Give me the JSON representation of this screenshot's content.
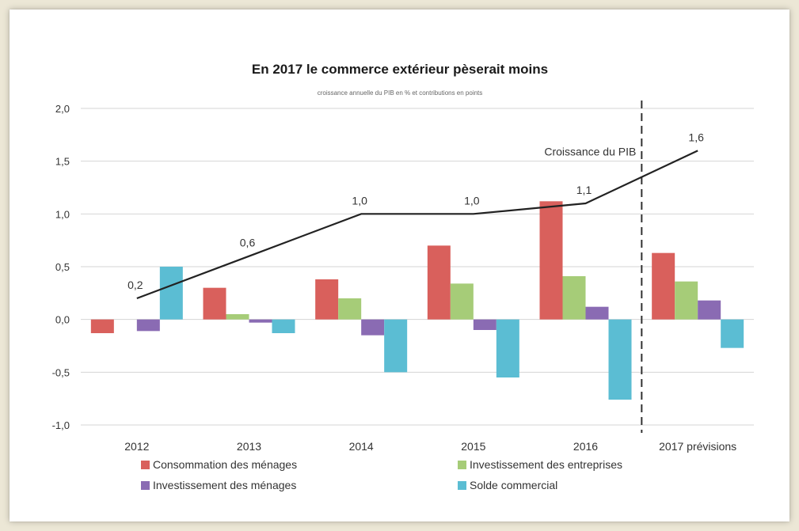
{
  "chart_data": {
    "type": "bar",
    "title": "En 2017 le commerce extérieur pèserait moins",
    "subtitle": "croissance annuelle du PIB en % et contributions en points",
    "xlabel": "",
    "ylabel": "",
    "categories": [
      "2012",
      "2013",
      "2014",
      "2015",
      "2016",
      "2017 prévisions"
    ],
    "ylim": [
      -1.0,
      2.0
    ],
    "yticks": [
      "2,0",
      "1,5",
      "1,0",
      "0,5",
      "0,0",
      "-0,5",
      "-1,0"
    ],
    "ytick_values": [
      2.0,
      1.5,
      1.0,
      0.5,
      0.0,
      -0.5,
      -1.0
    ],
    "grid": true,
    "legend_position": "bottom",
    "series": [
      {
        "name": "Consommation des ménages",
        "color": "#d9605c",
        "values": [
          -0.13,
          0.3,
          0.38,
          0.7,
          1.12,
          0.63
        ]
      },
      {
        "name": "Investissement des entreprises",
        "color": "#a6cc78",
        "values": [
          0.0,
          0.05,
          0.2,
          0.34,
          0.41,
          0.36
        ]
      },
      {
        "name": "Investissement  des ménages",
        "color": "#8a6bb3",
        "values": [
          -0.11,
          -0.03,
          -0.15,
          -0.1,
          0.12,
          0.18
        ]
      },
      {
        "name": "Solde commercial",
        "color": "#5bbdd3",
        "values": [
          0.5,
          -0.13,
          -0.5,
          -0.55,
          -0.76,
          -0.27
        ]
      }
    ],
    "line": {
      "name": "Croissance du PIB",
      "color": "#222222",
      "values": [
        0.2,
        0.6,
        1.0,
        1.0,
        1.1,
        1.6
      ],
      "labels": [
        "0,2",
        "0,6",
        "1,0",
        "1,0",
        "1,1",
        "1,6"
      ]
    },
    "forecast_separator_after": "2016"
  }
}
